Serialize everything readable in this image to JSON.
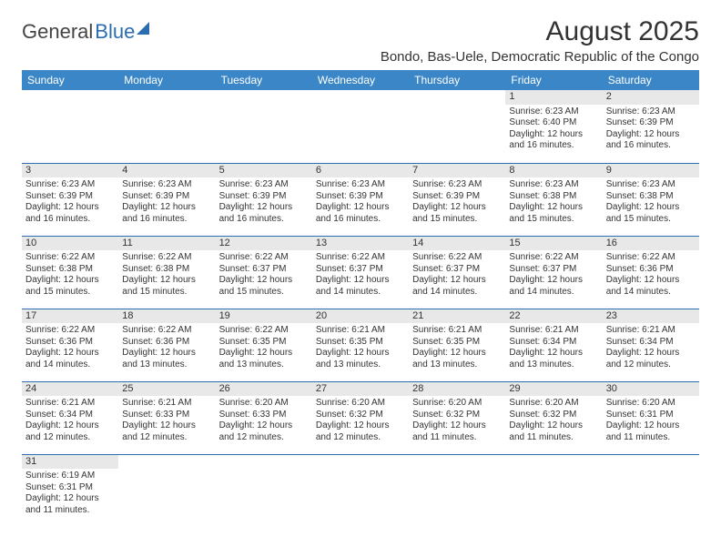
{
  "logo": {
    "part1": "General",
    "part2": "Blue"
  },
  "title": "August 2025",
  "location": "Bondo, Bas-Uele, Democratic Republic of the Congo",
  "colors": {
    "header_bg": "#3b86c6",
    "header_text": "#ffffff",
    "divider": "#2a6db0",
    "daynum_bg": "#e8e8e8",
    "text": "#333333",
    "accent": "#2a6db0"
  },
  "day_headers": [
    "Sunday",
    "Monday",
    "Tuesday",
    "Wednesday",
    "Thursday",
    "Friday",
    "Saturday"
  ],
  "weeks": [
    [
      {
        "day": "",
        "lines": []
      },
      {
        "day": "",
        "lines": []
      },
      {
        "day": "",
        "lines": []
      },
      {
        "day": "",
        "lines": []
      },
      {
        "day": "",
        "lines": []
      },
      {
        "day": "1",
        "lines": [
          "Sunrise: 6:23 AM",
          "Sunset: 6:40 PM",
          "Daylight: 12 hours and 16 minutes."
        ]
      },
      {
        "day": "2",
        "lines": [
          "Sunrise: 6:23 AM",
          "Sunset: 6:39 PM",
          "Daylight: 12 hours and 16 minutes."
        ]
      }
    ],
    [
      {
        "day": "3",
        "lines": [
          "Sunrise: 6:23 AM",
          "Sunset: 6:39 PM",
          "Daylight: 12 hours and 16 minutes."
        ]
      },
      {
        "day": "4",
        "lines": [
          "Sunrise: 6:23 AM",
          "Sunset: 6:39 PM",
          "Daylight: 12 hours and 16 minutes."
        ]
      },
      {
        "day": "5",
        "lines": [
          "Sunrise: 6:23 AM",
          "Sunset: 6:39 PM",
          "Daylight: 12 hours and 16 minutes."
        ]
      },
      {
        "day": "6",
        "lines": [
          "Sunrise: 6:23 AM",
          "Sunset: 6:39 PM",
          "Daylight: 12 hours and 16 minutes."
        ]
      },
      {
        "day": "7",
        "lines": [
          "Sunrise: 6:23 AM",
          "Sunset: 6:39 PM",
          "Daylight: 12 hours and 15 minutes."
        ]
      },
      {
        "day": "8",
        "lines": [
          "Sunrise: 6:23 AM",
          "Sunset: 6:38 PM",
          "Daylight: 12 hours and 15 minutes."
        ]
      },
      {
        "day": "9",
        "lines": [
          "Sunrise: 6:23 AM",
          "Sunset: 6:38 PM",
          "Daylight: 12 hours and 15 minutes."
        ]
      }
    ],
    [
      {
        "day": "10",
        "lines": [
          "Sunrise: 6:22 AM",
          "Sunset: 6:38 PM",
          "Daylight: 12 hours and 15 minutes."
        ]
      },
      {
        "day": "11",
        "lines": [
          "Sunrise: 6:22 AM",
          "Sunset: 6:38 PM",
          "Daylight: 12 hours and 15 minutes."
        ]
      },
      {
        "day": "12",
        "lines": [
          "Sunrise: 6:22 AM",
          "Sunset: 6:37 PM",
          "Daylight: 12 hours and 15 minutes."
        ]
      },
      {
        "day": "13",
        "lines": [
          "Sunrise: 6:22 AM",
          "Sunset: 6:37 PM",
          "Daylight: 12 hours and 14 minutes."
        ]
      },
      {
        "day": "14",
        "lines": [
          "Sunrise: 6:22 AM",
          "Sunset: 6:37 PM",
          "Daylight: 12 hours and 14 minutes."
        ]
      },
      {
        "day": "15",
        "lines": [
          "Sunrise: 6:22 AM",
          "Sunset: 6:37 PM",
          "Daylight: 12 hours and 14 minutes."
        ]
      },
      {
        "day": "16",
        "lines": [
          "Sunrise: 6:22 AM",
          "Sunset: 6:36 PM",
          "Daylight: 12 hours and 14 minutes."
        ]
      }
    ],
    [
      {
        "day": "17",
        "lines": [
          "Sunrise: 6:22 AM",
          "Sunset: 6:36 PM",
          "Daylight: 12 hours and 14 minutes."
        ]
      },
      {
        "day": "18",
        "lines": [
          "Sunrise: 6:22 AM",
          "Sunset: 6:36 PM",
          "Daylight: 12 hours and 13 minutes."
        ]
      },
      {
        "day": "19",
        "lines": [
          "Sunrise: 6:22 AM",
          "Sunset: 6:35 PM",
          "Daylight: 12 hours and 13 minutes."
        ]
      },
      {
        "day": "20",
        "lines": [
          "Sunrise: 6:21 AM",
          "Sunset: 6:35 PM",
          "Daylight: 12 hours and 13 minutes."
        ]
      },
      {
        "day": "21",
        "lines": [
          "Sunrise: 6:21 AM",
          "Sunset: 6:35 PM",
          "Daylight: 12 hours and 13 minutes."
        ]
      },
      {
        "day": "22",
        "lines": [
          "Sunrise: 6:21 AM",
          "Sunset: 6:34 PM",
          "Daylight: 12 hours and 13 minutes."
        ]
      },
      {
        "day": "23",
        "lines": [
          "Sunrise: 6:21 AM",
          "Sunset: 6:34 PM",
          "Daylight: 12 hours and 12 minutes."
        ]
      }
    ],
    [
      {
        "day": "24",
        "lines": [
          "Sunrise: 6:21 AM",
          "Sunset: 6:34 PM",
          "Daylight: 12 hours and 12 minutes."
        ]
      },
      {
        "day": "25",
        "lines": [
          "Sunrise: 6:21 AM",
          "Sunset: 6:33 PM",
          "Daylight: 12 hours and 12 minutes."
        ]
      },
      {
        "day": "26",
        "lines": [
          "Sunrise: 6:20 AM",
          "Sunset: 6:33 PM",
          "Daylight: 12 hours and 12 minutes."
        ]
      },
      {
        "day": "27",
        "lines": [
          "Sunrise: 6:20 AM",
          "Sunset: 6:32 PM",
          "Daylight: 12 hours and 12 minutes."
        ]
      },
      {
        "day": "28",
        "lines": [
          "Sunrise: 6:20 AM",
          "Sunset: 6:32 PM",
          "Daylight: 12 hours and 11 minutes."
        ]
      },
      {
        "day": "29",
        "lines": [
          "Sunrise: 6:20 AM",
          "Sunset: 6:32 PM",
          "Daylight: 12 hours and 11 minutes."
        ]
      },
      {
        "day": "30",
        "lines": [
          "Sunrise: 6:20 AM",
          "Sunset: 6:31 PM",
          "Daylight: 12 hours and 11 minutes."
        ]
      }
    ],
    [
      {
        "day": "31",
        "lines": [
          "Sunrise: 6:19 AM",
          "Sunset: 6:31 PM",
          "Daylight: 12 hours and 11 minutes."
        ]
      },
      {
        "day": "",
        "lines": []
      },
      {
        "day": "",
        "lines": []
      },
      {
        "day": "",
        "lines": []
      },
      {
        "day": "",
        "lines": []
      },
      {
        "day": "",
        "lines": []
      },
      {
        "day": "",
        "lines": []
      }
    ]
  ]
}
